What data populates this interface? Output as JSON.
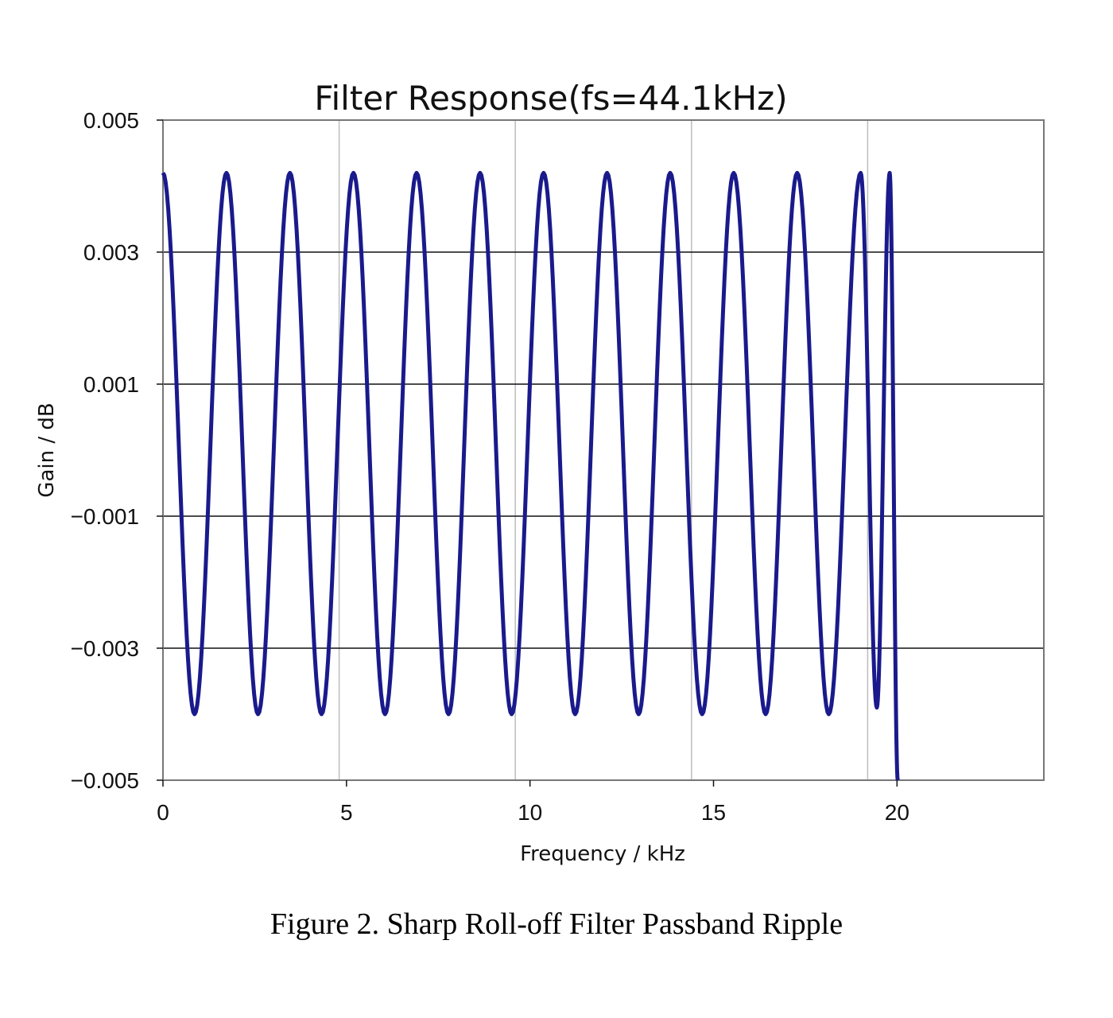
{
  "chart_data": {
    "type": "line",
    "title": "Filter Response(fs=44.1kHz)",
    "xlabel": "Frequency / kHz",
    "ylabel": "Gain / dB",
    "xlim": [
      0,
      24
    ],
    "ylim": [
      -0.005,
      0.005
    ],
    "x_ticks": [
      0,
      5,
      10,
      15,
      20
    ],
    "x_tick_labels": [
      "0",
      "5",
      "10",
      "15",
      "20"
    ],
    "y_ticks": [
      0.005,
      0.003,
      0.001,
      -0.001,
      -0.003,
      -0.005
    ],
    "y_tick_labels": [
      "0.005",
      "0.003",
      "0.001",
      "−0.001",
      "−0.003",
      "−0.005"
    ],
    "vertical_gridlines_x": [
      4.8,
      9.6,
      14.4,
      19.2
    ],
    "horizontal_gridlines_y": [
      0.003,
      0.001,
      -0.001,
      -0.003
    ],
    "legend": "none",
    "series": [
      {
        "color": "#1a1a8c",
        "x": [
          0,
          0.86,
          1.73,
          2.59,
          3.46,
          4.32,
          5.19,
          6.05,
          6.91,
          7.78,
          8.64,
          9.5,
          10.37,
          11.23,
          12.1,
          12.96,
          13.82,
          14.69,
          15.55,
          16.42,
          17.28,
          18.14,
          19.01,
          19.45,
          19.8,
          20.02
        ],
        "y": [
          0.0042,
          -0.004,
          0.0042,
          -0.004,
          0.0042,
          -0.004,
          0.0042,
          -0.004,
          0.0042,
          -0.004,
          0.0042,
          -0.004,
          0.0042,
          -0.004,
          0.0042,
          -0.004,
          0.0042,
          -0.004,
          0.0042,
          -0.004,
          0.0042,
          -0.004,
          0.0042,
          -0.0039,
          0.0042,
          -0.005
        ]
      }
    ]
  },
  "caption": "Figure 2. Sharp Roll-off Filter Passband Ripple"
}
